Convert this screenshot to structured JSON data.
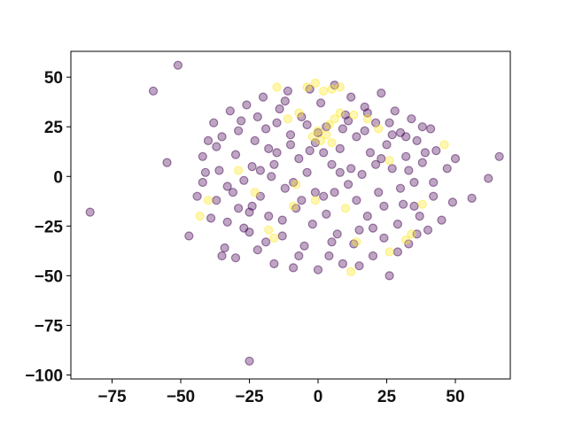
{
  "chart_data": {
    "type": "scatter",
    "title": "",
    "xlabel": "",
    "ylabel": "",
    "xlim": [
      -90,
      70
    ],
    "ylim": [
      -102,
      63
    ],
    "grid": false,
    "legend": "none",
    "x_ticks": [
      -75,
      -50,
      -25,
      0,
      25,
      50
    ],
    "y_ticks": [
      -100,
      -75,
      -50,
      -25,
      0,
      25,
      50
    ],
    "x_tick_labels": [
      "−75",
      "−50",
      "−25",
      "0",
      "25",
      "50"
    ],
    "y_tick_labels": [
      "−100",
      "−75",
      "−50",
      "−25",
      "0",
      "25",
      "50"
    ],
    "marker_alpha": 0.35,
    "colors": {
      "class_0": "#440154",
      "class_1": "#fde725"
    },
    "series": [
      {
        "color_key": "class_0",
        "points": [
          [
            -83,
            -18
          ],
          [
            -60,
            43
          ],
          [
            -55,
            7
          ],
          [
            -51,
            56
          ],
          [
            -47,
            -30
          ],
          [
            -25,
            -93
          ],
          [
            56,
            -11
          ],
          [
            62,
            -1
          ],
          [
            66,
            10
          ],
          [
            -44,
            -10
          ],
          [
            -42,
            -3
          ],
          [
            -42,
            10
          ],
          [
            -40,
            18
          ],
          [
            -38,
            27
          ],
          [
            -37,
            -12
          ],
          [
            -36,
            3
          ],
          [
            -35,
            20
          ],
          [
            -33,
            -23
          ],
          [
            -32,
            33
          ],
          [
            -31,
            -8
          ],
          [
            -30,
            11
          ],
          [
            -29,
            -16
          ],
          [
            -28,
            28
          ],
          [
            -27,
            -2
          ],
          [
            -26,
            36
          ],
          [
            -25,
            -28
          ],
          [
            -24,
            5
          ],
          [
            -23,
            18
          ],
          [
            -22,
            -37
          ],
          [
            -21,
            -10
          ],
          [
            -20,
            40
          ],
          [
            -19,
            24
          ],
          [
            -18,
            -20
          ],
          [
            -17,
            0
          ],
          [
            -16,
            -44
          ],
          [
            -15,
            12
          ],
          [
            -14,
            34
          ],
          [
            -13,
            -30
          ],
          [
            -12,
            -6
          ],
          [
            -11,
            43
          ],
          [
            -10,
            21
          ],
          [
            -9,
            -46
          ],
          [
            -8,
            -16
          ],
          [
            -7,
            9
          ],
          [
            -6,
            30
          ],
          [
            -5,
            -35
          ],
          [
            -4,
            2
          ],
          [
            -3,
            44
          ],
          [
            -2,
            -24
          ],
          [
            -1,
            17
          ],
          [
            0,
            -47
          ],
          [
            1,
            37
          ],
          [
            2,
            -10
          ],
          [
            3,
            25
          ],
          [
            4,
            -40
          ],
          [
            5,
            6
          ],
          [
            6,
            46
          ],
          [
            7,
            -29
          ],
          [
            8,
            14
          ],
          [
            9,
            -44
          ],
          [
            10,
            31
          ],
          [
            11,
            -4
          ],
          [
            12,
            40
          ],
          [
            13,
            -34
          ],
          [
            14,
            20
          ],
          [
            15,
            -45
          ],
          [
            16,
            1
          ],
          [
            17,
            35
          ],
          [
            18,
            -20
          ],
          [
            19,
            12
          ],
          [
            20,
            -40
          ],
          [
            21,
            27
          ],
          [
            22,
            -8
          ],
          [
            23,
            42
          ],
          [
            24,
            -31
          ],
          [
            25,
            16
          ],
          [
            26,
            -50
          ],
          [
            27,
            4
          ],
          [
            28,
            33
          ],
          [
            29,
            -24
          ],
          [
            30,
            22
          ],
          [
            31,
            -14
          ],
          [
            32,
            10
          ],
          [
            33,
            -34
          ],
          [
            34,
            29
          ],
          [
            35,
            -3
          ],
          [
            36,
            18
          ],
          [
            37,
            -20
          ],
          [
            38,
            7
          ],
          [
            40,
            -27
          ],
          [
            41,
            24
          ],
          [
            42,
            -10
          ],
          [
            43,
            13
          ],
          [
            45,
            -22
          ],
          [
            47,
            4
          ],
          [
            49,
            -13
          ],
          [
            50,
            9
          ],
          [
            -35,
            -40
          ],
          [
            -34,
            -36
          ],
          [
            -30,
            -41
          ],
          [
            -27,
            -26
          ],
          [
            -24,
            -15
          ],
          [
            -21,
            3
          ],
          [
            -18,
            14
          ],
          [
            -15,
            27
          ],
          [
            -12,
            38
          ],
          [
            -9,
            -3
          ],
          [
            -6,
            -12
          ],
          [
            -3,
            13
          ],
          [
            0,
            22
          ],
          [
            3,
            -19
          ],
          [
            6,
            -8
          ],
          [
            9,
            24
          ],
          [
            12,
            4
          ],
          [
            15,
            -27
          ],
          [
            18,
            32
          ],
          [
            21,
            6
          ],
          [
            24,
            -15
          ],
          [
            27,
            21
          ],
          [
            30,
            -6
          ],
          [
            33,
            3
          ],
          [
            36,
            -29
          ],
          [
            39,
            12
          ],
          [
            -39,
            -21
          ],
          [
            -41,
            2
          ],
          [
            -37,
            15
          ],
          [
            -33,
            -5
          ],
          [
            -29,
            23
          ],
          [
            -25,
            -18
          ],
          [
            -22,
            30
          ],
          [
            -19,
            -33
          ],
          [
            -16,
            6
          ],
          [
            -13,
            -22
          ],
          [
            -10,
            16
          ],
          [
            -7,
            -40
          ],
          [
            -4,
            26
          ],
          [
            -1,
            -8
          ],
          [
            2,
            12
          ],
          [
            5,
            -33
          ],
          [
            8,
            2
          ],
          [
            11,
            28
          ],
          [
            14,
            -12
          ],
          [
            17,
            23
          ],
          [
            20,
            -26
          ],
          [
            23,
            9
          ],
          [
            26,
            27
          ],
          [
            29,
            -38
          ],
          [
            32,
            20
          ],
          [
            35,
            -15
          ],
          [
            38,
            25
          ],
          [
            42,
            -3
          ]
        ]
      },
      {
        "color_key": "class_1",
        "points": [
          [
            -2,
            20
          ],
          [
            0,
            23
          ],
          [
            1,
            18
          ],
          [
            3,
            21
          ],
          [
            4,
            26
          ],
          [
            5,
            17
          ],
          [
            6,
            29
          ],
          [
            -4,
            45
          ],
          [
            -1,
            47
          ],
          [
            2,
            43
          ],
          [
            5,
            44
          ],
          [
            8,
            45
          ],
          [
            -15,
            45
          ],
          [
            -7,
            32
          ],
          [
            -11,
            29
          ],
          [
            8,
            32
          ],
          [
            13,
            31
          ],
          [
            18,
            29
          ],
          [
            22,
            24
          ],
          [
            -29,
            3
          ],
          [
            -23,
            -8
          ],
          [
            -18,
            -27
          ],
          [
            -16,
            -31
          ],
          [
            -9,
            -15
          ],
          [
            -8,
            -4
          ],
          [
            -1,
            -12
          ],
          [
            10,
            -16
          ],
          [
            14,
            -33
          ],
          [
            12,
            -48
          ],
          [
            26,
            -38
          ],
          [
            32,
            -32
          ],
          [
            34,
            -29
          ],
          [
            26,
            8
          ],
          [
            38,
            -14
          ],
          [
            46,
            16
          ],
          [
            -43,
            -20
          ],
          [
            -40,
            -12
          ]
        ]
      }
    ]
  }
}
